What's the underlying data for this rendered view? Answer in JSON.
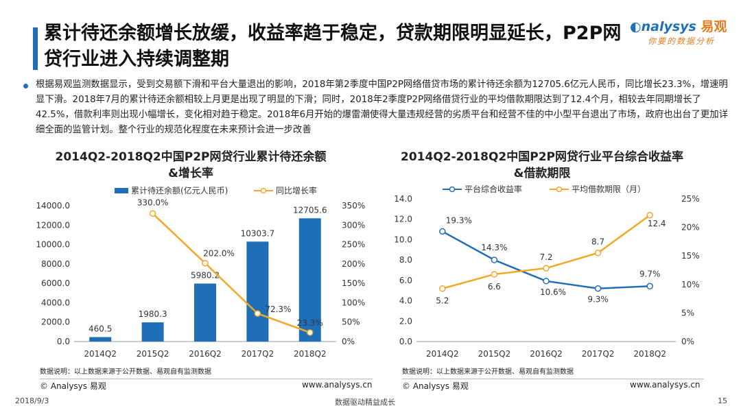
{
  "title": "累计待还余额增长放缓，收益率趋于稳定，贷款期限明显延长，P2P网贷行业进入持续调整期",
  "logo": {
    "brand": "nalysys",
    "brand_cn": "易观",
    "slogan": "你要的数据分析"
  },
  "summary": "根据易观监测数据显示，受到交易额下滑和平台大量退出的影响，2018年第2季度中国P2P网络借贷市场的累计待还余额为12705.6亿元人民币，同比增长23.3%，增速明显下滑。2018年7月的累计待还余额相较上月更是出现了明显的下滑；同时，2018年2季度P2P网络借贷行业的平均借款期限达到了12.4个月，相较去年同期增长了42.5%，借款利率则出现小幅增长，变化相对趋于稳定。2018年6月开始的爆雷潮使得大量违规经营的劣质平台和经营不佳的中小型平台退出了市场，政府也出台了更加详细全面的监管计划。整个行业的规范化程度在未来预计会进一步改善",
  "colors": {
    "blue": "#1e6fb8",
    "orange": "#f5a623",
    "axis": "#999999"
  },
  "chart_data": [
    {
      "type": "bar",
      "title_line1": "2014Q2-2018Q2中国P2P网贷行业累计待还余额",
      "title_line2": "&增长率",
      "categories": [
        "2014Q2",
        "2015Q2",
        "2016Q2",
        "2017Q2",
        "2018Q2"
      ],
      "series": [
        {
          "name": "累计待还余额(亿元人民币)",
          "type": "bar",
          "axis": "left",
          "values": [
            460.5,
            1980.3,
            5980.2,
            10303.7,
            12705.6
          ],
          "labels": [
            "460.5",
            "1980.3",
            "5980.2",
            "10303.7",
            "12705.6"
          ]
        },
        {
          "name": "同比增长率",
          "type": "line",
          "axis": "right",
          "values": [
            null,
            330.0,
            202.0,
            72.3,
            23.3
          ],
          "labels": [
            "",
            "330.0%",
            "202.0%",
            "72.3%",
            "23.3%"
          ]
        }
      ],
      "y_left": {
        "min": 0,
        "max": 14000,
        "ticks": [
          "0.0",
          "2000.0",
          "4000.0",
          "6000.0",
          "8000.0",
          "10000.0",
          "12000.0",
          "14000.0"
        ]
      },
      "y_right": {
        "min": 0,
        "max": 350,
        "ticks": [
          "0%",
          "50%",
          "100%",
          "150%",
          "200%",
          "250%",
          "300%",
          "350%"
        ]
      },
      "legend_position": "top",
      "source": "数据说明：以上数据来源于公开数据、易观自有监测数据",
      "copyright": "© Analysys 易观",
      "website": "www.analysys.cn"
    },
    {
      "type": "line",
      "title_line1": "2014Q2-2018Q2中国P2P网贷行业平台综合收益率",
      "title_line2": "&借款期限",
      "categories": [
        "2014Q2",
        "2015Q2",
        "2016Q2",
        "2017Q2",
        "2018Q2"
      ],
      "series": [
        {
          "name": "平台综合收益率",
          "axis": "right",
          "values": [
            19.3,
            14.3,
            10.6,
            9.3,
            9.7
          ],
          "labels": [
            "19.3%",
            "14.3%",
            "10.6%",
            "9.3%",
            "9.7%"
          ]
        },
        {
          "name": "平均借款期限（月）",
          "axis": "left",
          "values": [
            5.2,
            6.6,
            7.2,
            8.7,
            12.4
          ],
          "labels": [
            "5.2",
            "6.6",
            "7.2",
            "8.7",
            "12.4"
          ]
        }
      ],
      "y_left": {
        "min": 0,
        "max": 14,
        "ticks": [
          "0.0",
          "2.0",
          "4.0",
          "6.0",
          "8.0",
          "10.0",
          "12.0",
          "14.0"
        ]
      },
      "y_right": {
        "min": 0,
        "max": 25,
        "ticks": [
          "0%",
          "5%",
          "10%",
          "15%",
          "20%",
          "25%"
        ]
      },
      "legend_position": "top",
      "source": "数据说明：以上数据来源于公开数据、易观自有监测数据",
      "copyright": "© Analysys 易观",
      "website": "www.analysys.cn"
    }
  ],
  "footer": {
    "date": "2018/9/3",
    "slogan": "数据驱动精益成长",
    "page": "15"
  }
}
